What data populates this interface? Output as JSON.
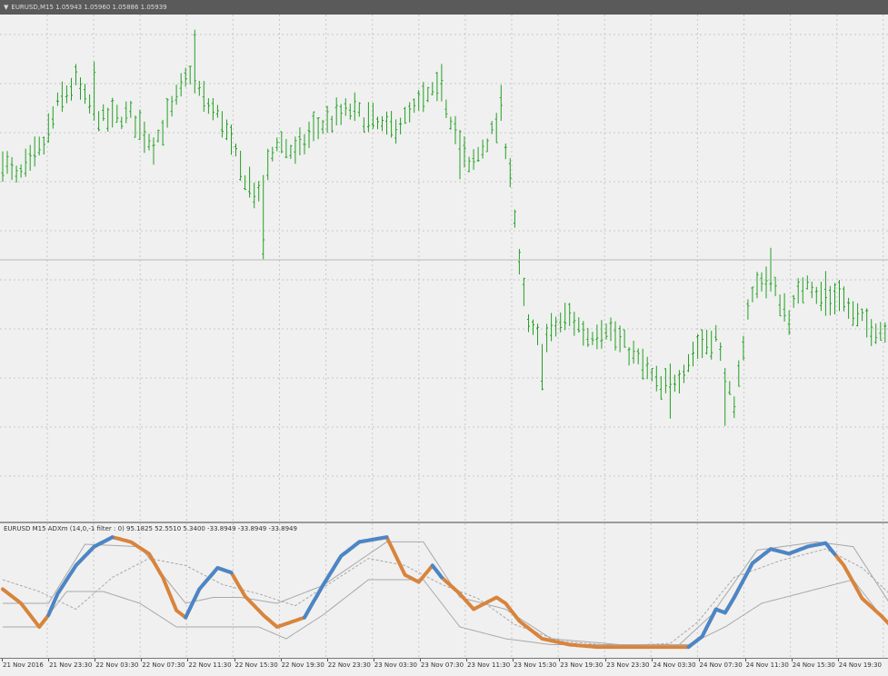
{
  "window": {
    "title": "EURUSD,M15  1.05943 1.05960 1.05886 1.05939"
  },
  "indicator": {
    "label": "EURUSD M15 ADXm (14,0,-1 filter : 0) 95.1825 52.5510 5.3400 -33.8949 -33.8949 -33.8949"
  },
  "colors": {
    "background": "#f0f0f0",
    "grid": "#c8c8c8",
    "bars": "#22a022",
    "adx_up": "#4a86c8",
    "adx_down": "#d8843c",
    "di_line": "#a8a8a8"
  },
  "x_axis": {
    "labels": [
      "21 Nov 2016",
      "21 Nov 23:30",
      "22 Nov 03:30",
      "22 Nov 07:30",
      "22 Nov 11:30",
      "22 Nov 15:30",
      "22 Nov 19:30",
      "22 Nov 23:30",
      "23 Nov 03:30",
      "23 Nov 07:30",
      "23 Nov 11:30",
      "23 Nov 15:30",
      "23 Nov 19:30",
      "23 Nov 23:30",
      "24 Nov 03:30",
      "24 Nov 07:30",
      "24 Nov 11:30",
      "24 Nov 15:30",
      "24 Nov 19:30"
    ]
  },
  "chart_data": [
    {
      "type": "bar",
      "series": "EURUSD M15 OHLC",
      "bar_count": 194,
      "y_range": [
        0,
        100
      ],
      "keypoints": [
        [
          0,
          72
        ],
        [
          3,
          68
        ],
        [
          6,
          71
        ],
        [
          9,
          75
        ],
        [
          12,
          83
        ],
        [
          16,
          88
        ],
        [
          18,
          84
        ],
        [
          22,
          80
        ],
        [
          28,
          81
        ],
        [
          33,
          75
        ],
        [
          37,
          82
        ],
        [
          41,
          90
        ],
        [
          44,
          84
        ],
        [
          48,
          80
        ],
        [
          52,
          70
        ],
        [
          56,
          64
        ],
        [
          60,
          76
        ],
        [
          64,
          73
        ],
        [
          68,
          78
        ],
        [
          72,
          80
        ],
        [
          76,
          82
        ],
        [
          80,
          80
        ],
        [
          84,
          78
        ],
        [
          88,
          80
        ],
        [
          92,
          84
        ],
        [
          96,
          86
        ],
        [
          99,
          78
        ],
        [
          102,
          70
        ],
        [
          106,
          76
        ],
        [
          109,
          80
        ],
        [
          111,
          70
        ],
        [
          113,
          50
        ],
        [
          115,
          38
        ],
        [
          118,
          34
        ],
        [
          121,
          38
        ],
        [
          124,
          40
        ],
        [
          128,
          36
        ],
        [
          132,
          38
        ],
        [
          136,
          34
        ],
        [
          140,
          30
        ],
        [
          144,
          25
        ],
        [
          148,
          28
        ],
        [
          152,
          34
        ],
        [
          156,
          36
        ],
        [
          160,
          20
        ],
        [
          163,
          42
        ],
        [
          166,
          48
        ],
        [
          169,
          45
        ],
        [
          172,
          40
        ],
        [
          176,
          48
        ],
        [
          180,
          42
        ],
        [
          183,
          45
        ],
        [
          186,
          40
        ],
        [
          190,
          38
        ],
        [
          193,
          37
        ]
      ],
      "spikes": [
        [
          20,
          "up",
          6
        ],
        [
          42,
          "up",
          7
        ],
        [
          57,
          "down",
          13
        ],
        [
          96,
          "up",
          5
        ],
        [
          100,
          "down",
          6
        ],
        [
          109,
          "up",
          4
        ],
        [
          118,
          "down",
          6
        ],
        [
          146,
          "down",
          5
        ],
        [
          158,
          "down",
          6
        ],
        [
          168,
          "up",
          6
        ],
        [
          180,
          "up",
          5
        ]
      ]
    },
    {
      "type": "line",
      "series": "ADXm",
      "y_range": [
        0,
        100
      ],
      "main": [
        [
          0,
          52
        ],
        [
          4,
          40
        ],
        [
          8,
          20
        ],
        [
          10,
          30
        ],
        [
          12,
          48
        ],
        [
          16,
          72
        ],
        [
          20,
          88
        ],
        [
          24,
          96
        ],
        [
          28,
          92
        ],
        [
          32,
          82
        ],
        [
          35,
          62
        ],
        [
          38,
          34
        ],
        [
          40,
          28
        ],
        [
          43,
          52
        ],
        [
          47,
          70
        ],
        [
          50,
          66
        ],
        [
          53,
          46
        ],
        [
          57,
          30
        ],
        [
          60,
          20
        ],
        [
          63,
          24
        ],
        [
          66,
          28
        ],
        [
          70,
          55
        ],
        [
          74,
          80
        ],
        [
          78,
          92
        ],
        [
          84,
          96
        ],
        [
          86,
          80
        ],
        [
          88,
          64
        ],
        [
          91,
          58
        ],
        [
          94,
          72
        ],
        [
          96,
          62
        ],
        [
          100,
          48
        ],
        [
          103,
          35
        ],
        [
          106,
          41
        ],
        [
          108,
          45
        ],
        [
          110,
          40
        ],
        [
          113,
          25
        ],
        [
          118,
          10
        ],
        [
          124,
          5
        ],
        [
          130,
          3
        ],
        [
          140,
          3
        ],
        [
          150,
          3
        ],
        [
          153,
          12
        ],
        [
          156,
          35
        ],
        [
          158,
          32
        ],
        [
          160,
          45
        ],
        [
          164,
          74
        ],
        [
          168,
          86
        ],
        [
          172,
          82
        ],
        [
          176,
          88
        ],
        [
          180,
          91
        ],
        [
          184,
          72
        ],
        [
          188,
          44
        ],
        [
          192,
          30
        ],
        [
          194,
          22
        ]
      ],
      "up_segments": [
        [
          10,
          24
        ],
        [
          40,
          50
        ],
        [
          66,
          84
        ],
        [
          94,
          96
        ],
        [
          150,
          182
        ]
      ],
      "di_plus": [
        [
          0,
          40
        ],
        [
          10,
          40
        ],
        [
          18,
          90
        ],
        [
          30,
          88
        ],
        [
          40,
          40
        ],
        [
          46,
          45
        ],
        [
          52,
          45
        ],
        [
          60,
          40
        ],
        [
          70,
          55
        ],
        [
          84,
          92
        ],
        [
          92,
          92
        ],
        [
          100,
          45
        ],
        [
          110,
          35
        ],
        [
          120,
          10
        ],
        [
          135,
          5
        ],
        [
          148,
          5
        ],
        [
          155,
          30
        ],
        [
          165,
          85
        ],
        [
          178,
          92
        ],
        [
          186,
          88
        ],
        [
          194,
          40
        ]
      ],
      "di_minus": [
        [
          0,
          60
        ],
        [
          8,
          50
        ],
        [
          16,
          35
        ],
        [
          24,
          62
        ],
        [
          32,
          78
        ],
        [
          40,
          72
        ],
        [
          48,
          56
        ],
        [
          56,
          48
        ],
        [
          64,
          38
        ],
        [
          72,
          58
        ],
        [
          80,
          78
        ],
        [
          88,
          72
        ],
        [
          96,
          56
        ],
        [
          104,
          44
        ],
        [
          112,
          22
        ],
        [
          122,
          8
        ],
        [
          134,
          4
        ],
        [
          146,
          6
        ],
        [
          152,
          24
        ],
        [
          160,
          62
        ],
        [
          170,
          76
        ],
        [
          180,
          86
        ],
        [
          188,
          70
        ],
        [
          194,
          48
        ]
      ],
      "envelope": [
        [
          0,
          20
        ],
        [
          8,
          20
        ],
        [
          14,
          50
        ],
        [
          22,
          50
        ],
        [
          30,
          40
        ],
        [
          38,
          20
        ],
        [
          46,
          20
        ],
        [
          56,
          20
        ],
        [
          62,
          10
        ],
        [
          70,
          30
        ],
        [
          80,
          60
        ],
        [
          92,
          60
        ],
        [
          100,
          20
        ],
        [
          110,
          10
        ],
        [
          120,
          5
        ],
        [
          140,
          5
        ],
        [
          150,
          5
        ],
        [
          158,
          20
        ],
        [
          166,
          40
        ],
        [
          176,
          50
        ],
        [
          186,
          60
        ],
        [
          194,
          20
        ]
      ]
    }
  ]
}
